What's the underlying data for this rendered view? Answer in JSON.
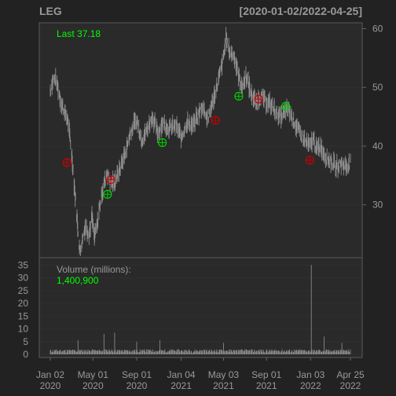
{
  "chart_data": {
    "type": "candlestick",
    "symbol": "LEG",
    "date_range": "[2020-01-02/2022-04-25]",
    "last_label": "Last 37.18",
    "volume_label": "Volume (millions):",
    "volume_value": "1,400,900",
    "price_axis": {
      "ticks": [
        30,
        40,
        50,
        60
      ],
      "ylim": [
        21,
        61
      ]
    },
    "volume_axis": {
      "ticks": [
        0,
        5,
        10,
        15,
        20,
        25,
        30,
        35
      ],
      "ylim": [
        0,
        36
      ]
    },
    "x_ticks": [
      {
        "line1": "Jan 02",
        "line2": "2020",
        "date": "2020-01-02"
      },
      {
        "line1": "May 01",
        "line2": "2020",
        "date": "2020-05-01"
      },
      {
        "line1": "Sep 01",
        "line2": "2020",
        "date": "2020-09-01"
      },
      {
        "line1": "Jan 04",
        "line2": "2021",
        "date": "2021-01-04"
      },
      {
        "line1": "May 03",
        "line2": "2021",
        "date": "2021-05-03"
      },
      {
        "line1": "Sep 01",
        "line2": "2021",
        "date": "2021-09-01"
      },
      {
        "line1": "Jan 03",
        "line2": "2022",
        "date": "2022-01-03"
      },
      {
        "line1": "Apr 25",
        "line2": "2022",
        "date": "2022-04-25"
      }
    ],
    "price_series": [
      {
        "date": "2020-01-02",
        "value": 49.5
      },
      {
        "date": "2020-01-10",
        "value": 51.5
      },
      {
        "date": "2020-01-20",
        "value": 51.0
      },
      {
        "date": "2020-02-01",
        "value": 47.5
      },
      {
        "date": "2020-02-10",
        "value": 46.0
      },
      {
        "date": "2020-02-20",
        "value": 44.5
      },
      {
        "date": "2020-03-01",
        "value": 39.5
      },
      {
        "date": "2020-03-10",
        "value": 33.0
      },
      {
        "date": "2020-03-18",
        "value": 27.0
      },
      {
        "date": "2020-03-25",
        "value": 22.0
      },
      {
        "date": "2020-04-01",
        "value": 24.0
      },
      {
        "date": "2020-04-10",
        "value": 26.5
      },
      {
        "date": "2020-04-20",
        "value": 25.0
      },
      {
        "date": "2020-04-28",
        "value": 28.0
      },
      {
        "date": "2020-05-05",
        "value": 24.5
      },
      {
        "date": "2020-05-12",
        "value": 26.0
      },
      {
        "date": "2020-05-20",
        "value": 30.0
      },
      {
        "date": "2020-06-01",
        "value": 33.5
      },
      {
        "date": "2020-06-10",
        "value": 35.5
      },
      {
        "date": "2020-06-20",
        "value": 33.5
      },
      {
        "date": "2020-07-01",
        "value": 34.0
      },
      {
        "date": "2020-07-15",
        "value": 36.0
      },
      {
        "date": "2020-08-01",
        "value": 39.0
      },
      {
        "date": "2020-08-15",
        "value": 42.5
      },
      {
        "date": "2020-09-01",
        "value": 44.5
      },
      {
        "date": "2020-09-15",
        "value": 41.0
      },
      {
        "date": "2020-10-01",
        "value": 43.0
      },
      {
        "date": "2020-10-15",
        "value": 45.0
      },
      {
        "date": "2020-11-01",
        "value": 42.0
      },
      {
        "date": "2020-11-10",
        "value": 44.0
      },
      {
        "date": "2020-12-01",
        "value": 43.0
      },
      {
        "date": "2020-12-20",
        "value": 43.5
      },
      {
        "date": "2021-01-05",
        "value": 41.5
      },
      {
        "date": "2021-01-20",
        "value": 44.0
      },
      {
        "date": "2021-02-05",
        "value": 43.5
      },
      {
        "date": "2021-02-20",
        "value": 45.0
      },
      {
        "date": "2021-03-05",
        "value": 47.0
      },
      {
        "date": "2021-03-20",
        "value": 44.5
      },
      {
        "date": "2021-04-05",
        "value": 48.0
      },
      {
        "date": "2021-04-20",
        "value": 51.5
      },
      {
        "date": "2021-05-03",
        "value": 55.0
      },
      {
        "date": "2021-05-10",
        "value": 58.5
      },
      {
        "date": "2021-05-20",
        "value": 56.0
      },
      {
        "date": "2021-06-01",
        "value": 55.5
      },
      {
        "date": "2021-06-15",
        "value": 52.0
      },
      {
        "date": "2021-06-25",
        "value": 50.0
      },
      {
        "date": "2021-07-05",
        "value": 52.0
      },
      {
        "date": "2021-07-20",
        "value": 49.0
      },
      {
        "date": "2021-08-01",
        "value": 47.5
      },
      {
        "date": "2021-08-15",
        "value": 48.5
      },
      {
        "date": "2021-09-01",
        "value": 47.5
      },
      {
        "date": "2021-09-15",
        "value": 47.0
      },
      {
        "date": "2021-10-01",
        "value": 45.5
      },
      {
        "date": "2021-10-15",
        "value": 45.0
      },
      {
        "date": "2021-11-01",
        "value": 46.5
      },
      {
        "date": "2021-11-15",
        "value": 44.5
      },
      {
        "date": "2021-12-01",
        "value": 42.5
      },
      {
        "date": "2021-12-15",
        "value": 41.0
      },
      {
        "date": "2022-01-03",
        "value": 40.0
      },
      {
        "date": "2022-01-10",
        "value": 41.5
      },
      {
        "date": "2022-01-20",
        "value": 39.5
      },
      {
        "date": "2022-02-01",
        "value": 40.0
      },
      {
        "date": "2022-02-15",
        "value": 38.0
      },
      {
        "date": "2022-03-01",
        "value": 37.5
      },
      {
        "date": "2022-03-15",
        "value": 36.5
      },
      {
        "date": "2022-04-01",
        "value": 37.0
      },
      {
        "date": "2022-04-15",
        "value": 36.5
      },
      {
        "date": "2022-04-25",
        "value": 37.18
      }
    ],
    "markers": [
      {
        "date": "2020-02-18",
        "value": 37.2,
        "kind": "sell"
      },
      {
        "date": "2020-06-11",
        "value": 31.8,
        "kind": "buy"
      },
      {
        "date": "2020-06-20",
        "value": 34.3,
        "kind": "sell"
      },
      {
        "date": "2020-11-12",
        "value": 40.6,
        "kind": "buy"
      },
      {
        "date": "2021-04-10",
        "value": 44.4,
        "kind": "sell"
      },
      {
        "date": "2021-06-15",
        "value": 48.5,
        "kind": "buy"
      },
      {
        "date": "2021-08-10",
        "value": 48.0,
        "kind": "sell"
      },
      {
        "date": "2021-10-25",
        "value": 46.8,
        "kind": "buy"
      },
      {
        "date": "2022-01-01",
        "value": 37.6,
        "kind": "sell"
      }
    ],
    "volume_spikes": [
      {
        "date": "2020-02-01",
        "value": 5.5
      },
      {
        "date": "2020-03-20",
        "value": 5.5
      },
      {
        "date": "2020-06-01",
        "value": 8.0
      },
      {
        "date": "2020-07-01",
        "value": 8.5
      },
      {
        "date": "2020-09-01",
        "value": 5.0
      },
      {
        "date": "2020-11-05",
        "value": 5.5
      },
      {
        "date": "2021-05-03",
        "value": 4.5
      },
      {
        "date": "2021-08-01",
        "value": 4.0
      },
      {
        "date": "2022-01-05",
        "value": 35.0
      },
      {
        "date": "2022-02-10",
        "value": 7.0
      },
      {
        "date": "2022-04-01",
        "value": 4.5
      }
    ],
    "colors": {
      "background": "#222222",
      "panel": "#2a2a2a",
      "candles": "#909090",
      "last_text": "#00ff00",
      "buy_marker": "#00cc00",
      "sell_marker": "#cc0000",
      "volume_bars": "#888888",
      "axis_text": "#999999"
    }
  }
}
